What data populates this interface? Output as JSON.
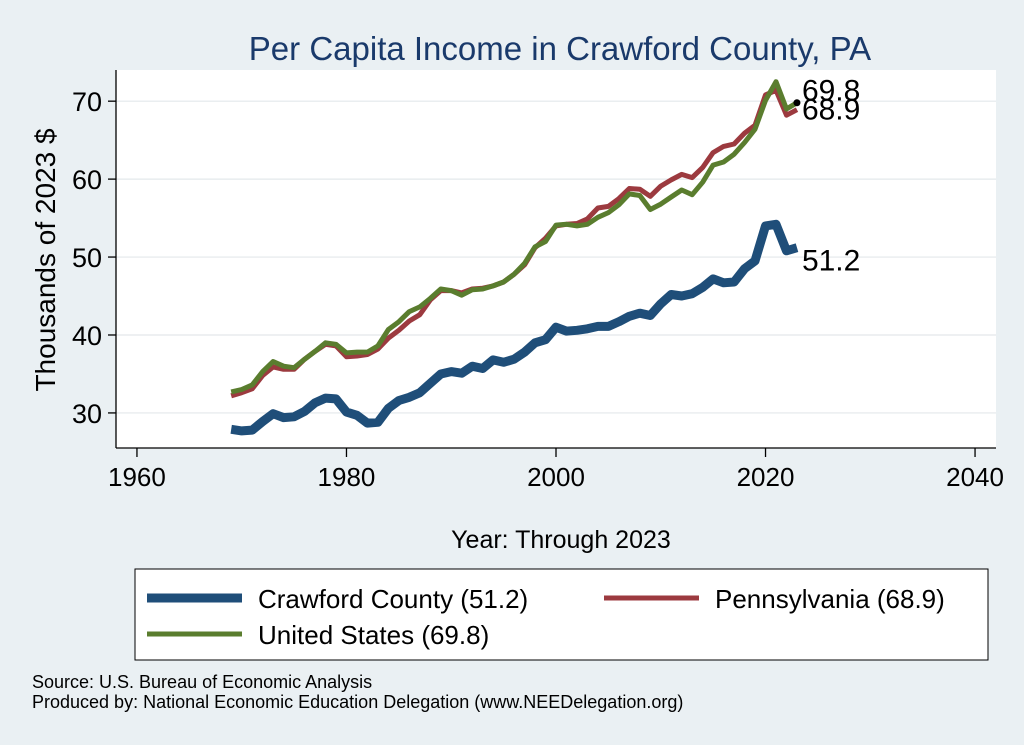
{
  "chart_data": {
    "type": "line",
    "title": "Per Capita Income in Crawford County, PA",
    "xlabel": "Year: Through 2023",
    "ylabel": "Thousands of 2023 $",
    "xlim": [
      1958,
      2042
    ],
    "ylim": [
      25.5,
      74
    ],
    "xticks": [
      1960,
      1980,
      2000,
      2020,
      2040
    ],
    "yticks": [
      30,
      40,
      50,
      60,
      70
    ],
    "grid": true,
    "legend_position": "bottom",
    "series": [
      {
        "name": "Crawford County (51.2)",
        "color": "#1f4e79",
        "end_label": "51.2",
        "x": [
          1969,
          1970,
          1971,
          1972,
          1973,
          1974,
          1975,
          1976,
          1977,
          1978,
          1979,
          1980,
          1981,
          1982,
          1983,
          1984,
          1985,
          1986,
          1987,
          1988,
          1989,
          1990,
          1991,
          1992,
          1993,
          1994,
          1995,
          1996,
          1997,
          1998,
          1999,
          2000,
          2001,
          2002,
          2003,
          2004,
          2005,
          2006,
          2007,
          2008,
          2009,
          2010,
          2011,
          2012,
          2013,
          2014,
          2015,
          2016,
          2017,
          2018,
          2019,
          2020,
          2021,
          2022,
          2023
        ],
        "values": [
          27.9,
          27.7,
          27.8,
          28.9,
          29.9,
          29.4,
          29.5,
          30.2,
          31.3,
          31.9,
          31.8,
          30.1,
          29.7,
          28.7,
          28.8,
          30.6,
          31.6,
          32.0,
          32.6,
          33.8,
          35.0,
          35.3,
          35.1,
          36.0,
          35.7,
          36.8,
          36.5,
          36.9,
          37.8,
          39.0,
          39.4,
          41.0,
          40.5,
          40.6,
          40.8,
          41.1,
          41.1,
          41.7,
          42.4,
          42.8,
          42.5,
          44.0,
          45.2,
          45.0,
          45.3,
          46.1,
          47.2,
          46.7,
          46.8,
          48.5,
          49.5,
          54.0,
          54.2,
          50.8,
          51.2
        ]
      },
      {
        "name": "Pennsylvania (68.9)",
        "color": "#9c3a3f",
        "end_label": "68.9",
        "x": [
          1969,
          1970,
          1971,
          1972,
          1973,
          1974,
          1975,
          1976,
          1977,
          1978,
          1979,
          1980,
          1981,
          1982,
          1983,
          1984,
          1985,
          1986,
          1987,
          1988,
          1989,
          1990,
          1991,
          1992,
          1993,
          1994,
          1995,
          1996,
          1997,
          1998,
          1999,
          2000,
          2001,
          2002,
          2003,
          2004,
          2005,
          2006,
          2007,
          2008,
          2009,
          2010,
          2011,
          2012,
          2013,
          2014,
          2015,
          2016,
          2017,
          2018,
          2019,
          2020,
          2021,
          2022,
          2023
        ],
        "values": [
          32.2,
          32.6,
          33.1,
          34.8,
          35.9,
          35.6,
          35.6,
          36.9,
          37.9,
          38.8,
          38.6,
          37.2,
          37.3,
          37.5,
          38.2,
          39.6,
          40.6,
          41.8,
          42.6,
          44.5,
          45.7,
          45.7,
          45.4,
          45.9,
          46.0,
          46.3,
          46.8,
          47.8,
          49.0,
          51.2,
          52.4,
          54.0,
          54.2,
          54.3,
          54.9,
          56.3,
          56.5,
          57.5,
          58.8,
          58.7,
          57.8,
          59.1,
          59.9,
          60.6,
          60.2,
          61.5,
          63.4,
          64.2,
          64.5,
          65.9,
          66.9,
          70.8,
          71.4,
          68.2,
          68.9
        ]
      },
      {
        "name": "United States (69.8)",
        "color": "#5a7d2e",
        "end_label": "69.8",
        "x": [
          1969,
          1970,
          1971,
          1972,
          1973,
          1974,
          1975,
          1976,
          1977,
          1978,
          1979,
          1980,
          1981,
          1982,
          1983,
          1984,
          1985,
          1986,
          1987,
          1988,
          1989,
          1990,
          1991,
          1992,
          1993,
          1994,
          1995,
          1996,
          1997,
          1998,
          1999,
          2000,
          2001,
          2002,
          2003,
          2004,
          2005,
          2006,
          2007,
          2008,
          2009,
          2010,
          2011,
          2012,
          2013,
          2014,
          2015,
          2016,
          2017,
          2018,
          2019,
          2020,
          2021,
          2022,
          2023
        ],
        "values": [
          32.7,
          33.0,
          33.6,
          35.3,
          36.6,
          36.0,
          35.8,
          36.9,
          37.9,
          39.0,
          38.8,
          37.7,
          37.8,
          37.8,
          38.6,
          40.7,
          41.7,
          43.0,
          43.6,
          44.7,
          45.9,
          45.7,
          45.1,
          45.8,
          45.9,
          46.3,
          46.8,
          47.8,
          49.2,
          51.3,
          52.0,
          54.1,
          54.2,
          54.0,
          54.2,
          55.1,
          55.7,
          56.7,
          58.1,
          57.9,
          56.1,
          56.8,
          57.7,
          58.6,
          58.0,
          59.6,
          61.8,
          62.2,
          63.2,
          64.7,
          66.4,
          70.1,
          72.5,
          69.0,
          69.8
        ]
      }
    ]
  },
  "footer": {
    "source": "Source: U.S. Bureau of Economic Analysis",
    "produced_by": "Produced by: National Economic Education Delegation (www.NEEDelegation.org)"
  }
}
